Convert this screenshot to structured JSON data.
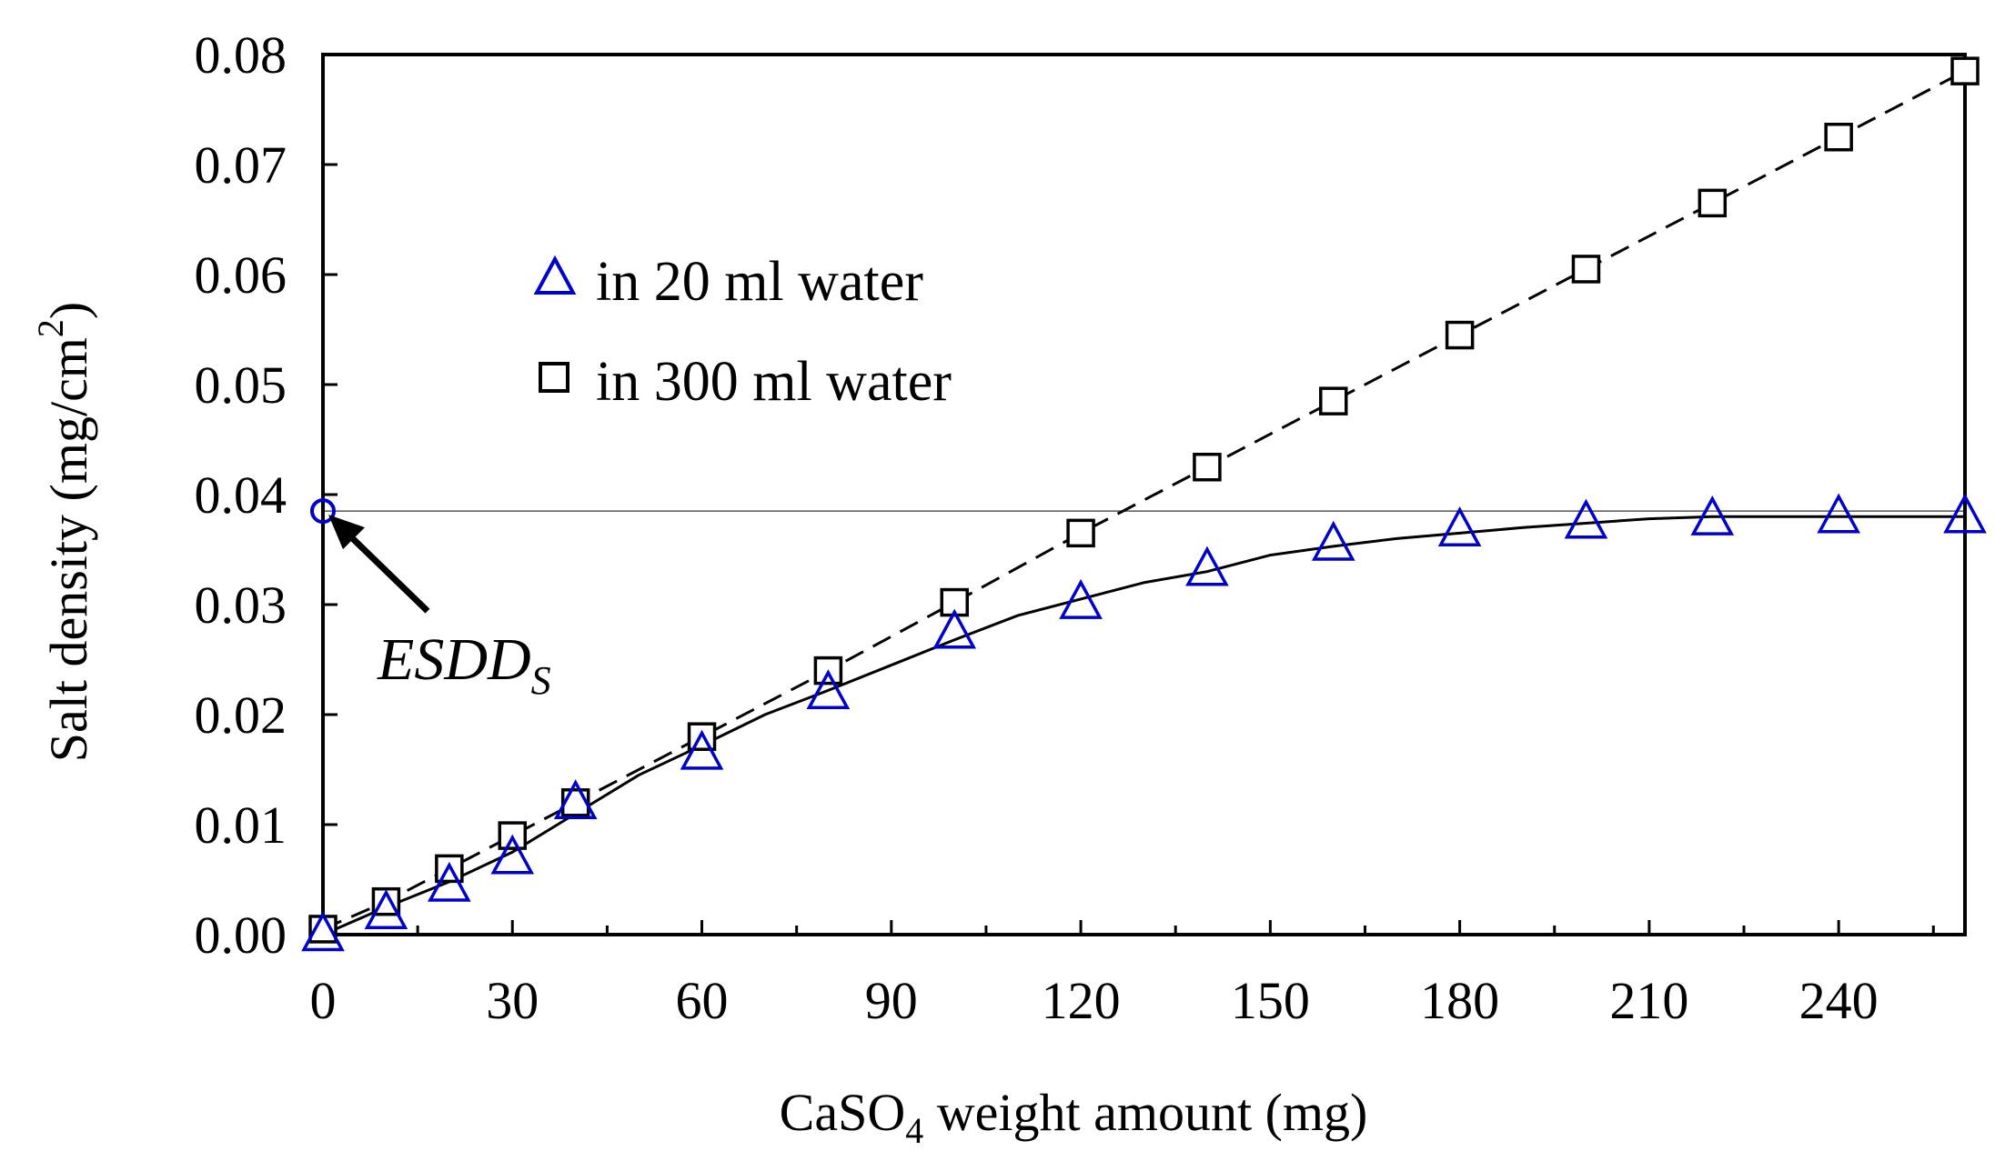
{
  "chart_data": {
    "type": "line",
    "title": "",
    "xlabel_main": "CaSO",
    "xlabel_sub": "4",
    "xlabel_rest": " weight amount  (mg)",
    "ylabel_main": "Salt density  (mg/cm",
    "ylabel_sup": "2",
    "ylabel_end": ")",
    "xlim": [
      0,
      260
    ],
    "ylim": [
      0,
      0.08
    ],
    "xticks": [
      0,
      30,
      60,
      90,
      120,
      150,
      180,
      210,
      240
    ],
    "xtick_labels": [
      "0",
      "30",
      "60",
      "90",
      "120",
      "150",
      "180",
      "210",
      "240"
    ],
    "yticks": [
      0,
      0.01,
      0.02,
      0.03,
      0.04,
      0.05,
      0.06,
      0.07,
      0.08
    ],
    "ytick_labels": [
      "0.00",
      "0.01",
      "0.02",
      "0.03",
      "0.04",
      "0.05",
      "0.06",
      "0.07",
      "0.08"
    ],
    "grid": false,
    "legend_position": "upper-left",
    "series": [
      {
        "name": "in 20 ml water",
        "marker": "triangle",
        "color": "#0000cc",
        "line_style": "solid",
        "line_color": "#000000",
        "x": [
          0,
          10,
          20,
          30,
          40,
          60,
          80,
          100,
          120,
          140,
          160,
          180,
          200,
          220,
          240,
          260
        ],
        "y": [
          0.0,
          0.002,
          0.0045,
          0.007,
          0.012,
          0.0165,
          0.022,
          0.0275,
          0.0302,
          0.0332,
          0.0355,
          0.0368,
          0.0375,
          0.0378,
          0.038,
          0.038
        ],
        "curve_x": [
          0,
          10,
          20,
          30,
          40,
          50,
          60,
          70,
          80,
          90,
          100,
          110,
          120,
          130,
          140,
          150,
          160,
          170,
          180,
          190,
          200,
          210,
          220,
          240,
          260
        ],
        "curve_y": [
          0.0,
          0.0025,
          0.0048,
          0.0075,
          0.011,
          0.0145,
          0.0172,
          0.02,
          0.0222,
          0.0245,
          0.0268,
          0.029,
          0.0305,
          0.032,
          0.033,
          0.0345,
          0.0353,
          0.036,
          0.0365,
          0.037,
          0.0374,
          0.0378,
          0.038,
          0.038,
          0.038
        ]
      },
      {
        "name": "in 300 ml water",
        "marker": "square",
        "color": "#000000",
        "line_style": "dashed",
        "line_color": "#000000",
        "x": [
          0,
          10,
          20,
          30,
          40,
          60,
          80,
          100,
          120,
          140,
          160,
          180,
          200,
          220,
          240,
          260
        ],
        "y": [
          0.0005,
          0.003,
          0.006,
          0.009,
          0.012,
          0.018,
          0.024,
          0.0302,
          0.0365,
          0.0425,
          0.0485,
          0.0545,
          0.0605,
          0.0665,
          0.0725,
          0.0785
        ]
      }
    ],
    "annotation": {
      "text_main": "ESDD",
      "text_sub": "S",
      "point_x": 0,
      "point_y": 0.0385,
      "marker_color": "#0000cc",
      "reference_line_y": 0.0385
    }
  }
}
